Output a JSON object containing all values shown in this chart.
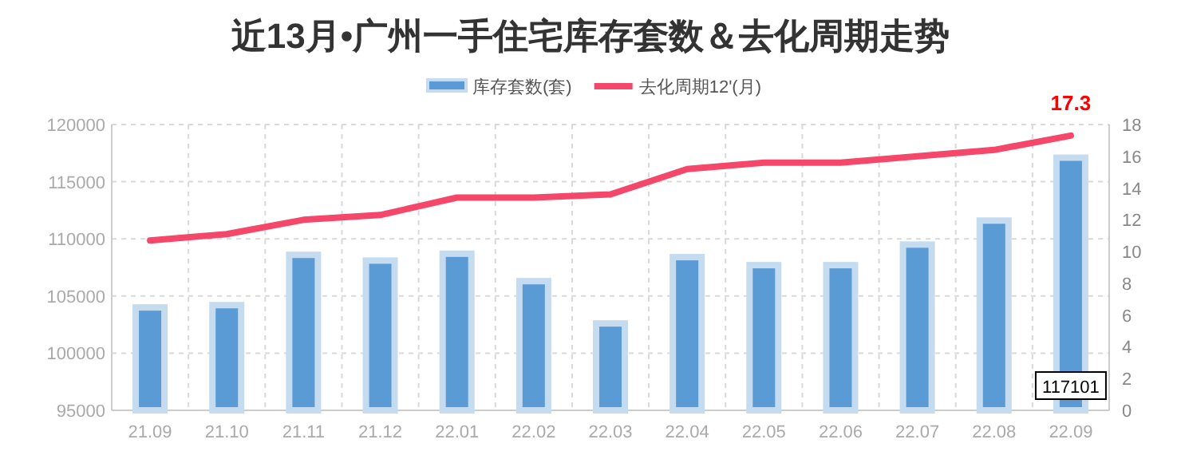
{
  "chart_data": {
    "type": "bar",
    "title": "近13月•广州一手住宅库存套数＆去化周期走势",
    "categories": [
      "21.09",
      "21.10",
      "21.11",
      "21.12",
      "22.01",
      "22.02",
      "22.03",
      "22.04",
      "22.05",
      "22.06",
      "22.07",
      "22.08",
      "22.09"
    ],
    "series": [
      {
        "name": "库存套数(套)",
        "color": "#5b9bd5",
        "values": [
          104000,
          104200,
          108600,
          108100,
          108700,
          106300,
          102600,
          108400,
          107700,
          107700,
          109500,
          111600,
          117101
        ],
        "value_labels": [
          null,
          null,
          null,
          null,
          null,
          null,
          null,
          null,
          null,
          null,
          null,
          null,
          "117101"
        ]
      },
      {
        "name": "去化周期12'(月)",
        "type": "line",
        "axis": "y2",
        "color": "#f5476a",
        "values": [
          10.7,
          11.1,
          12.0,
          12.3,
          13.4,
          13.4,
          13.6,
          15.2,
          15.6,
          15.6,
          16.0,
          16.4,
          17.3
        ],
        "value_labels": [
          null,
          null,
          null,
          null,
          null,
          null,
          null,
          null,
          null,
          null,
          null,
          null,
          "17.3"
        ]
      }
    ],
    "ylim": [
      95000,
      120000
    ],
    "yticks": [
      95000,
      100000,
      105000,
      110000,
      115000,
      120000
    ],
    "y2lim": [
      0,
      18
    ],
    "y2ticks": [
      0,
      2,
      4,
      6,
      8,
      10,
      12,
      14,
      16,
      18
    ],
    "grid": true,
    "legend": "top",
    "marker": "none",
    "line_style": "solid"
  }
}
